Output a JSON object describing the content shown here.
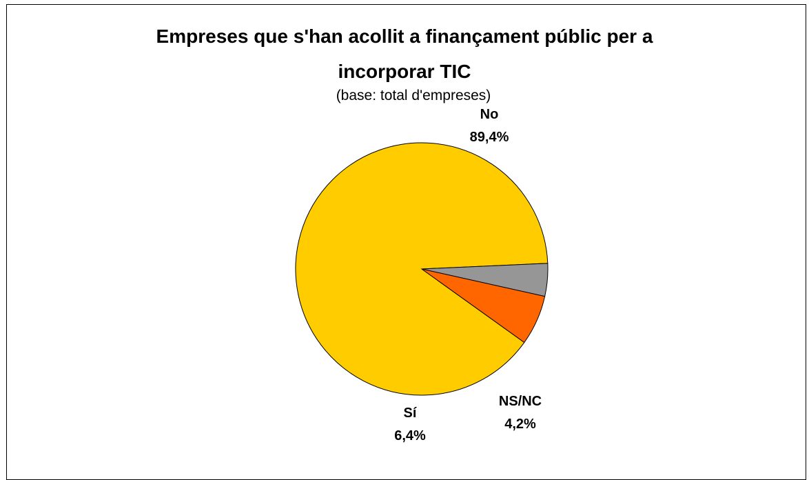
{
  "chart_data": {
    "type": "pie",
    "title_lines": [
      "Empreses que s'han acollit a finançament públic per a",
      "incorporar TIC"
    ],
    "subtitle": "(base: total d'empreses)",
    "slices": [
      {
        "label": "No",
        "value": 89.4,
        "display": "89,4%",
        "color": "#FFCC00"
      },
      {
        "label": "NS/NC",
        "value": 4.2,
        "display": "4,2%",
        "color": "#969696"
      },
      {
        "label": "Sí",
        "value": 6.4,
        "display": "6,4%",
        "color": "#FF6600"
      }
    ],
    "legend": "none"
  }
}
